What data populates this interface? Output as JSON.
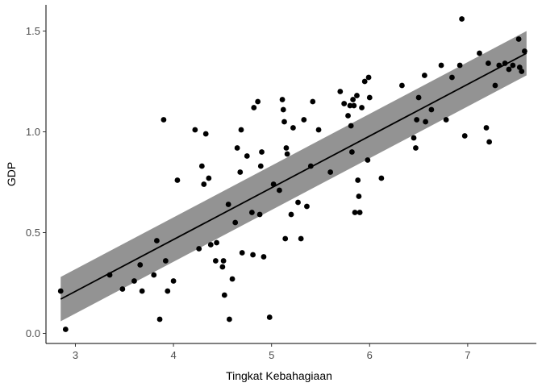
{
  "chart_data": {
    "type": "scatter",
    "title": "",
    "xlabel": "Tingkat Kebahagiaan",
    "ylabel": "GDP",
    "xlim": [
      2.7,
      7.7
    ],
    "ylim": [
      -0.05,
      1.63
    ],
    "x_ticks": [
      3,
      4,
      5,
      6,
      7
    ],
    "y_ticks": [
      0.0,
      0.5,
      1.0,
      1.5
    ],
    "x_tick_labels": [
      "3",
      "4",
      "5",
      "6",
      "7"
    ],
    "y_tick_labels": [
      "0.0",
      "0.5",
      "1.0",
      "1.5"
    ],
    "grid": false,
    "colors": {
      "points": "#000000",
      "fit_line": "#000000",
      "confidence_band": "#808080"
    },
    "fit": {
      "method": "linear",
      "x": [
        2.85,
        7.6
      ],
      "y": [
        0.17,
        1.39
      ],
      "ci_lower": [
        0.06,
        1.28
      ],
      "ci_upper": [
        0.28,
        1.5
      ]
    },
    "points": [
      {
        "x": 2.85,
        "y": 0.21
      },
      {
        "x": 2.9,
        "y": 0.02
      },
      {
        "x": 3.35,
        "y": 0.29
      },
      {
        "x": 3.48,
        "y": 0.22
      },
      {
        "x": 3.6,
        "y": 0.26
      },
      {
        "x": 3.66,
        "y": 0.34
      },
      {
        "x": 3.68,
        "y": 0.21
      },
      {
        "x": 3.8,
        "y": 0.29
      },
      {
        "x": 3.83,
        "y": 0.46
      },
      {
        "x": 3.86,
        "y": 0.07
      },
      {
        "x": 3.9,
        "y": 1.06
      },
      {
        "x": 3.92,
        "y": 0.36
      },
      {
        "x": 3.94,
        "y": 0.21
      },
      {
        "x": 4.0,
        "y": 0.26
      },
      {
        "x": 4.04,
        "y": 0.76
      },
      {
        "x": 4.22,
        "y": 1.01
      },
      {
        "x": 4.26,
        "y": 0.42
      },
      {
        "x": 4.29,
        "y": 0.83
      },
      {
        "x": 4.31,
        "y": 0.74
      },
      {
        "x": 4.33,
        "y": 0.99
      },
      {
        "x": 4.36,
        "y": 0.77
      },
      {
        "x": 4.38,
        "y": 0.44
      },
      {
        "x": 4.43,
        "y": 0.36
      },
      {
        "x": 4.44,
        "y": 0.45
      },
      {
        "x": 4.5,
        "y": 0.33
      },
      {
        "x": 4.51,
        "y": 0.36
      },
      {
        "x": 4.52,
        "y": 0.19
      },
      {
        "x": 4.56,
        "y": 0.64
      },
      {
        "x": 4.57,
        "y": 0.07
      },
      {
        "x": 4.6,
        "y": 0.27
      },
      {
        "x": 4.63,
        "y": 0.55
      },
      {
        "x": 4.65,
        "y": 0.92
      },
      {
        "x": 4.68,
        "y": 0.8
      },
      {
        "x": 4.69,
        "y": 1.01
      },
      {
        "x": 4.7,
        "y": 0.4
      },
      {
        "x": 4.75,
        "y": 0.88
      },
      {
        "x": 4.8,
        "y": 0.6
      },
      {
        "x": 4.81,
        "y": 0.39
      },
      {
        "x": 4.82,
        "y": 1.12
      },
      {
        "x": 4.86,
        "y": 1.15
      },
      {
        "x": 4.88,
        "y": 0.59
      },
      {
        "x": 4.89,
        "y": 0.83
      },
      {
        "x": 4.9,
        "y": 0.9
      },
      {
        "x": 4.92,
        "y": 0.38
      },
      {
        "x": 4.98,
        "y": 0.08
      },
      {
        "x": 5.02,
        "y": 0.74
      },
      {
        "x": 5.08,
        "y": 0.71
      },
      {
        "x": 5.11,
        "y": 1.16
      },
      {
        "x": 5.12,
        "y": 1.11
      },
      {
        "x": 5.13,
        "y": 1.05
      },
      {
        "x": 5.14,
        "y": 0.47
      },
      {
        "x": 5.15,
        "y": 0.92
      },
      {
        "x": 5.16,
        "y": 0.89
      },
      {
        "x": 5.2,
        "y": 0.59
      },
      {
        "x": 5.22,
        "y": 1.02
      },
      {
        "x": 5.27,
        "y": 0.65
      },
      {
        "x": 5.3,
        "y": 0.47
      },
      {
        "x": 5.33,
        "y": 1.06
      },
      {
        "x": 5.36,
        "y": 0.63
      },
      {
        "x": 5.4,
        "y": 0.83
      },
      {
        "x": 5.42,
        "y": 1.15
      },
      {
        "x": 5.48,
        "y": 1.01
      },
      {
        "x": 5.6,
        "y": 0.8
      },
      {
        "x": 5.7,
        "y": 1.2
      },
      {
        "x": 5.74,
        "y": 1.14
      },
      {
        "x": 5.78,
        "y": 1.08
      },
      {
        "x": 5.8,
        "y": 1.13
      },
      {
        "x": 5.81,
        "y": 1.03
      },
      {
        "x": 5.82,
        "y": 0.9
      },
      {
        "x": 5.83,
        "y": 1.16
      },
      {
        "x": 5.84,
        "y": 1.13
      },
      {
        "x": 5.85,
        "y": 0.6
      },
      {
        "x": 5.87,
        "y": 1.18
      },
      {
        "x": 5.88,
        "y": 0.76
      },
      {
        "x": 5.89,
        "y": 0.68
      },
      {
        "x": 5.9,
        "y": 0.6
      },
      {
        "x": 5.92,
        "y": 1.12
      },
      {
        "x": 5.95,
        "y": 1.25
      },
      {
        "x": 5.98,
        "y": 0.86
      },
      {
        "x": 5.99,
        "y": 1.27
      },
      {
        "x": 6.0,
        "y": 1.17
      },
      {
        "x": 6.12,
        "y": 0.77
      },
      {
        "x": 6.33,
        "y": 1.23
      },
      {
        "x": 6.45,
        "y": 0.97
      },
      {
        "x": 6.47,
        "y": 0.92
      },
      {
        "x": 6.48,
        "y": 1.06
      },
      {
        "x": 6.5,
        "y": 1.17
      },
      {
        "x": 6.56,
        "y": 1.28
      },
      {
        "x": 6.57,
        "y": 1.05
      },
      {
        "x": 6.63,
        "y": 1.11
      },
      {
        "x": 6.73,
        "y": 1.33
      },
      {
        "x": 6.78,
        "y": 1.06
      },
      {
        "x": 6.84,
        "y": 1.27
      },
      {
        "x": 6.92,
        "y": 1.33
      },
      {
        "x": 6.94,
        "y": 1.56
      },
      {
        "x": 6.97,
        "y": 0.98
      },
      {
        "x": 7.12,
        "y": 1.39
      },
      {
        "x": 7.19,
        "y": 1.02
      },
      {
        "x": 7.21,
        "y": 1.34
      },
      {
        "x": 7.22,
        "y": 0.95
      },
      {
        "x": 7.28,
        "y": 1.23
      },
      {
        "x": 7.32,
        "y": 1.33
      },
      {
        "x": 7.38,
        "y": 1.34
      },
      {
        "x": 7.42,
        "y": 1.31
      },
      {
        "x": 7.46,
        "y": 1.33
      },
      {
        "x": 7.52,
        "y": 1.46
      },
      {
        "x": 7.53,
        "y": 1.32
      },
      {
        "x": 7.55,
        "y": 1.3
      },
      {
        "x": 7.58,
        "y": 1.4
      }
    ]
  }
}
